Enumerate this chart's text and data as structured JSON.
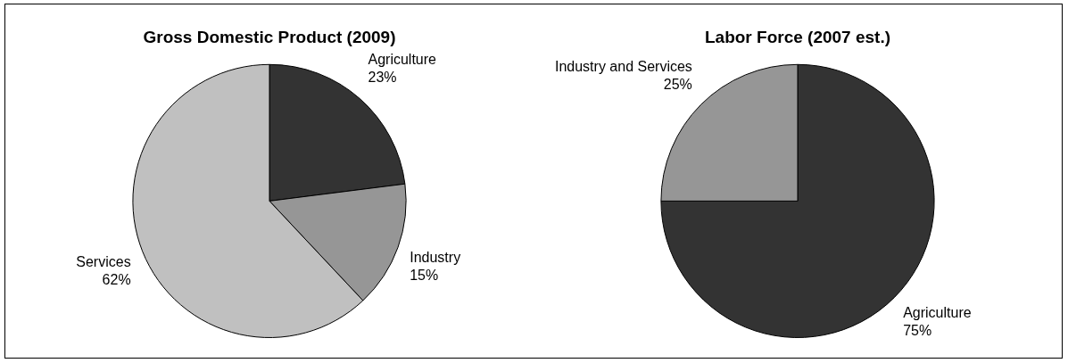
{
  "chart_data": [
    {
      "type": "pie",
      "title": "Gross Domestic Product (2009)",
      "categories": [
        "Agriculture",
        "Industry",
        "Services"
      ],
      "values": [
        23,
        15,
        62
      ],
      "colors": [
        "#333333",
        "#969696",
        "#c0c0c0"
      ],
      "value_labels": [
        "23%",
        "15%",
        "62%"
      ],
      "legend": false
    },
    {
      "type": "pie",
      "title": "Labor Force (2007 est.)",
      "categories": [
        "Agriculture",
        "Industry and Services"
      ],
      "values": [
        75,
        25
      ],
      "colors": [
        "#333333",
        "#969696"
      ],
      "value_labels": [
        "75%",
        "25%"
      ],
      "legend": false
    }
  ]
}
